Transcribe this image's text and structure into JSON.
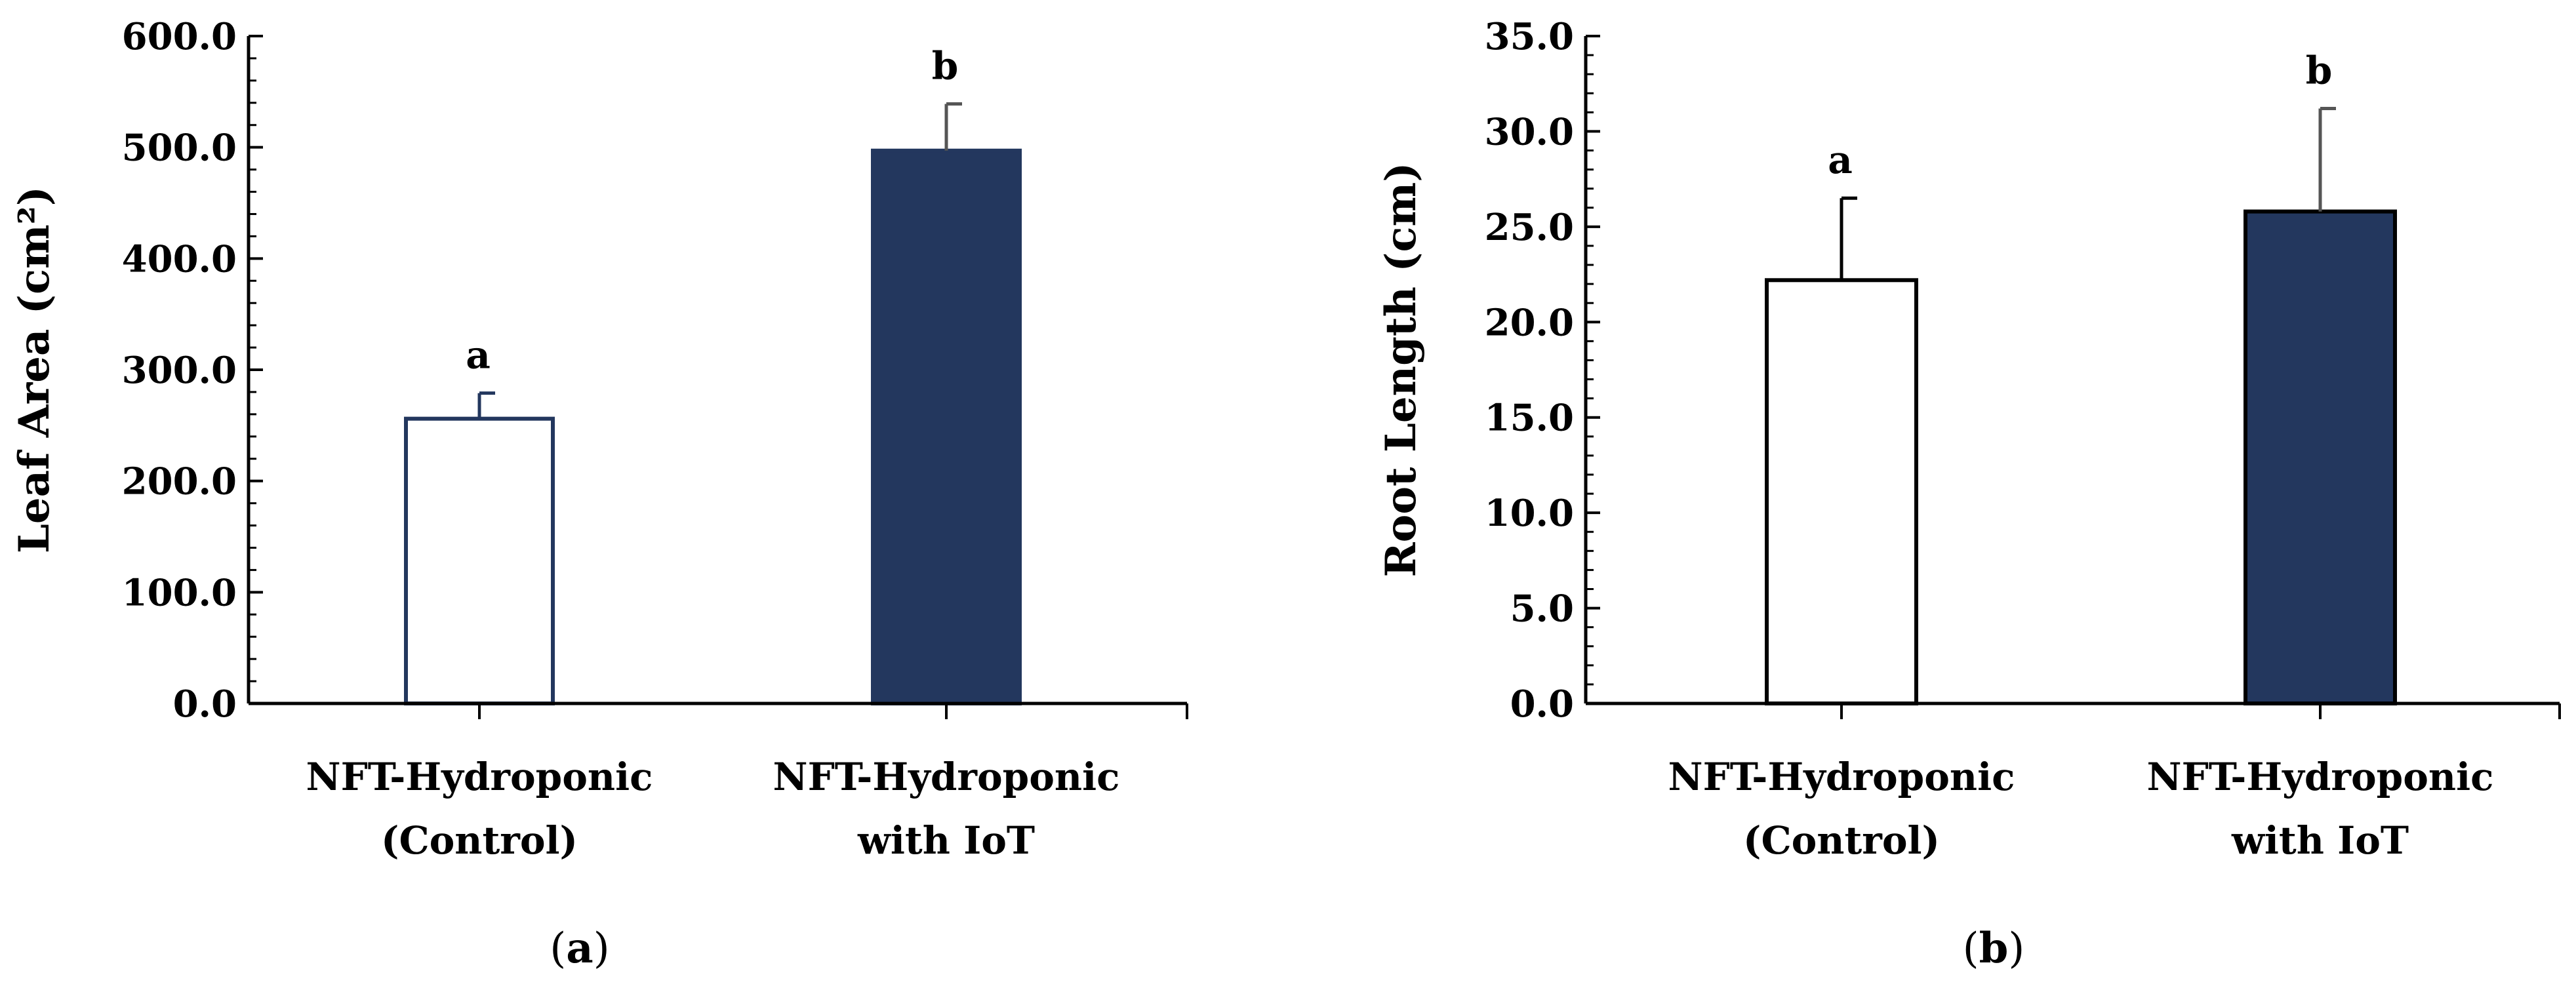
{
  "chart_data": [
    {
      "type": "bar",
      "panel_label": "a",
      "ylabel": "Leaf Area (cm²)",
      "xlabel": "",
      "ylim": [
        0,
        600
      ],
      "yticks": [
        "0.0",
        "100.0",
        "200.0",
        "300.0",
        "400.0",
        "500.0",
        "600.0"
      ],
      "categories": [
        [
          "NFT-Hydroponic",
          "(Control)"
        ],
        [
          "NFT-Hydroponic",
          "with IoT"
        ]
      ],
      "values": [
        256,
        497
      ],
      "errors": [
        23,
        42
      ],
      "significance": [
        "a",
        "b"
      ],
      "colors": [
        "#ffffff",
        "#23375e"
      ],
      "edge_colors": [
        "#23375e",
        "#23375e"
      ]
    },
    {
      "type": "bar",
      "panel_label": "b",
      "ylabel": "Root Length (cm)",
      "xlabel": "",
      "ylim": [
        0,
        35
      ],
      "yticks": [
        "0.0",
        "5.0",
        "10.0",
        "15.0",
        "20.0",
        "25.0",
        "30.0",
        "35.0"
      ],
      "categories": [
        [
          "NFT-Hydroponic",
          "(Control)"
        ],
        [
          "NFT-Hydroponic",
          "with IoT"
        ]
      ],
      "values": [
        22.2,
        25.8
      ],
      "errors": [
        4.3,
        5.4
      ],
      "significance": [
        "a",
        "b"
      ],
      "colors": [
        "#ffffff",
        "#23375e"
      ],
      "edge_colors": [
        "#000000",
        "#000000"
      ]
    }
  ]
}
